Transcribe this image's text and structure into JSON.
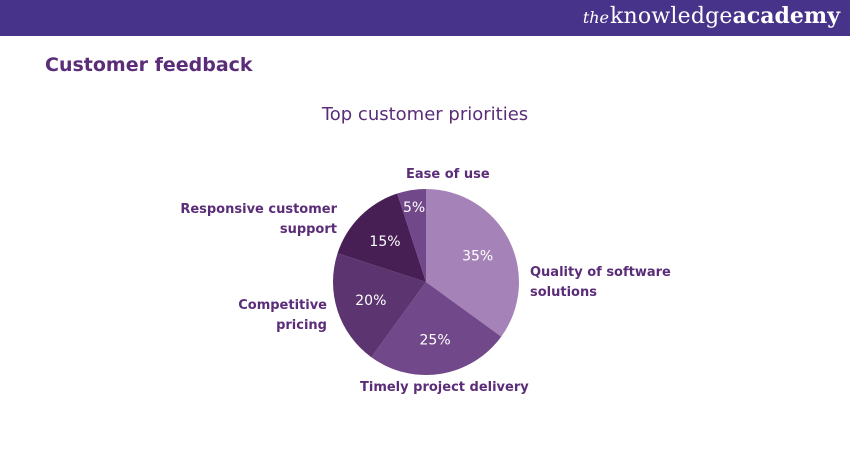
{
  "header": {
    "brand_prefix": "the",
    "brand_middle": "knowledge",
    "brand_suffix": "academy",
    "bar_color": "#47338a"
  },
  "page": {
    "heading": "Customer feedback"
  },
  "chart_data": {
    "type": "pie",
    "title": "Top customer priorities",
    "slices": [
      {
        "label": "Quality of software solutions",
        "value": 35,
        "value_label": "35%",
        "color": "#a583b8"
      },
      {
        "label": "Timely project delivery",
        "value": 25,
        "value_label": "25%",
        "color": "#714889"
      },
      {
        "label": "Competitive pricing",
        "value": 20,
        "value_label": "20%",
        "color": "#5b3470"
      },
      {
        "label": "Responsive customer support",
        "value": 15,
        "value_label": "15%",
        "color": "#481f54"
      },
      {
        "label": "Ease of use",
        "value": 5,
        "value_label": "5%",
        "color": "#714889"
      }
    ],
    "label_lines": {
      "quality": [
        "Quality of software",
        "solutions"
      ],
      "timely": [
        "Timely project delivery"
      ],
      "competitive": [
        "Competitive",
        "pricing"
      ],
      "responsive": [
        "Responsive customer",
        "support"
      ],
      "ease": [
        "Ease of use"
      ]
    }
  }
}
